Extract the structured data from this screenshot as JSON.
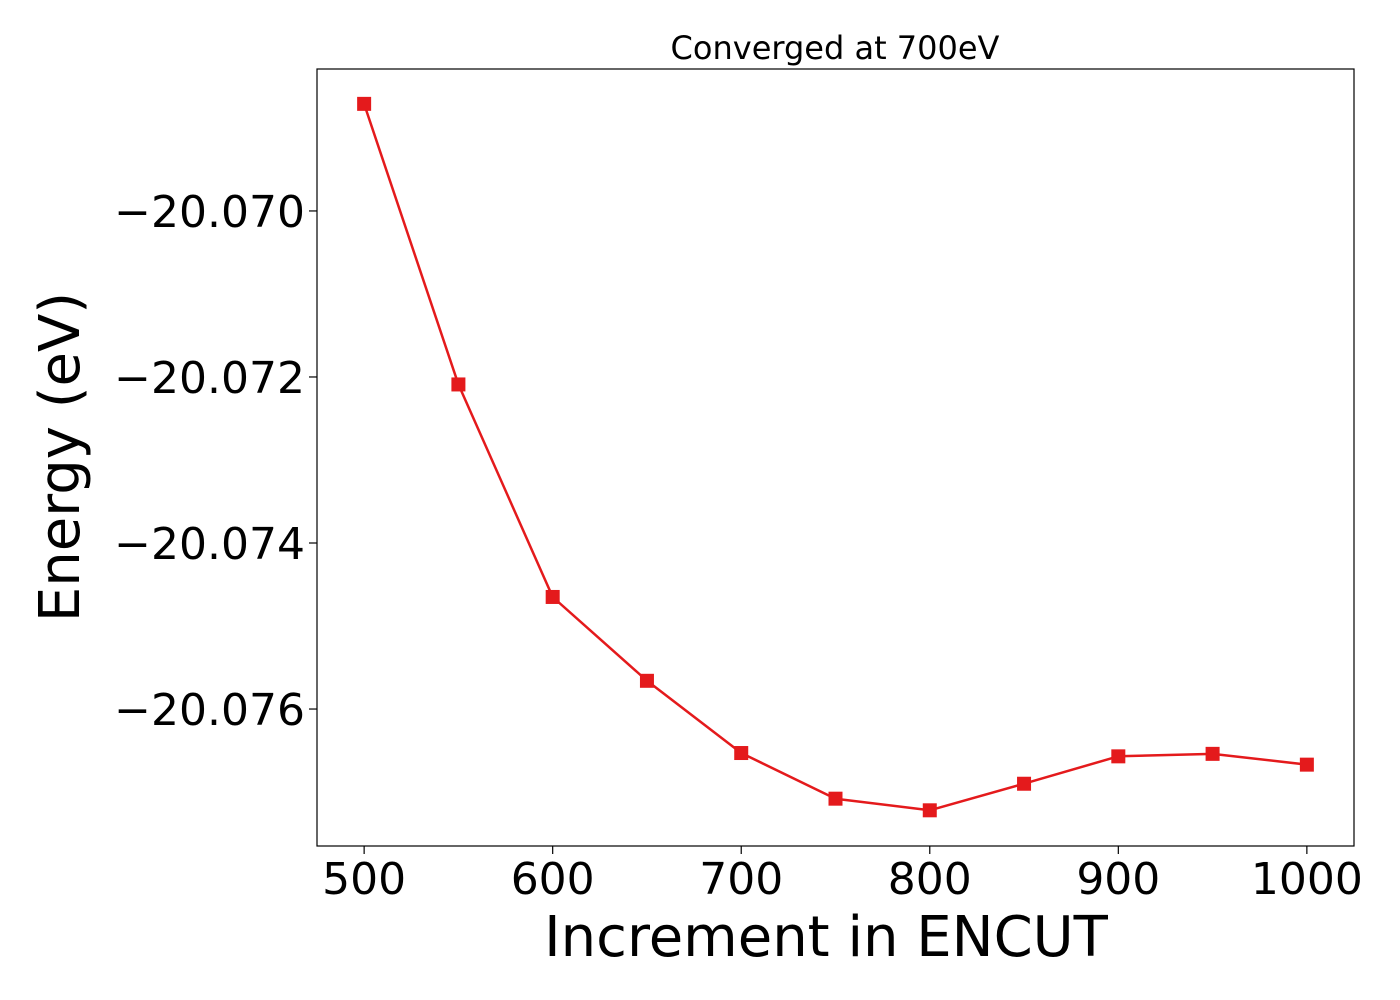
{
  "chart_data": {
    "type": "line",
    "title": "Converged at 700eV",
    "xlabel": "Increment in ENCUT",
    "ylabel": "Energy (eV)",
    "x": [
      500,
      550,
      600,
      650,
      700,
      750,
      800,
      850,
      900,
      950,
      1000
    ],
    "series": [
      {
        "values": [
          -20.06871,
          -20.07209,
          -20.07465,
          -20.07566,
          -20.07653,
          -20.07708,
          -20.07722,
          -20.0769,
          -20.07657,
          -20.07654,
          -20.07667
        ],
        "color": "#e41a1c",
        "marker": "square"
      }
    ],
    "xlim": [
      475,
      1025
    ],
    "ylim": [
      -20.07765,
      -20.06829
    ],
    "xticks": [
      500,
      600,
      700,
      800,
      900,
      1000
    ],
    "xtick_labels": [
      "500",
      "600",
      "700",
      "800",
      "900",
      "1000"
    ],
    "yticks": [
      -20.07,
      -20.072,
      -20.074,
      -20.076
    ],
    "ytick_labels": [
      "−20.070",
      "−20.072",
      "−20.074",
      "−20.076"
    ],
    "grid": false,
    "legend": false
  }
}
